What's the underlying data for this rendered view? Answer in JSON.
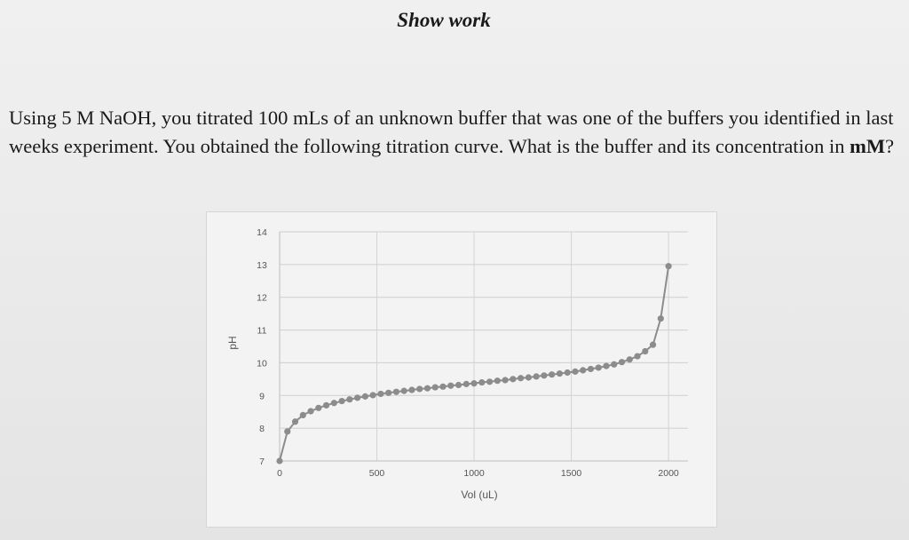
{
  "page": {
    "heading": "Show work",
    "question_pre": "Using 5 M NaOH, you titrated 100 mLs of an unknown buffer that was one of the buffers you identified in last weeks experiment. You obtained the following titration curve. What is the buffer and its concentration in ",
    "question_bold": "mM",
    "question_post": "?"
  },
  "chart_data": {
    "type": "line",
    "xlabel": "Vol (uL)",
    "ylabel": "pH",
    "xlim": [
      0,
      2100
    ],
    "ylim": [
      7,
      14
    ],
    "x_ticks": [
      0,
      500,
      1000,
      1500,
      2000
    ],
    "y_ticks": [
      7,
      8,
      9,
      10,
      11,
      12,
      13,
      14
    ],
    "grid": true,
    "series": [
      {
        "color": "#8c8c8c",
        "points": [
          [
            0,
            7.0
          ],
          [
            40,
            7.9
          ],
          [
            80,
            8.2
          ],
          [
            120,
            8.4
          ],
          [
            160,
            8.52
          ],
          [
            200,
            8.62
          ],
          [
            240,
            8.7
          ],
          [
            280,
            8.77
          ],
          [
            320,
            8.83
          ],
          [
            360,
            8.88
          ],
          [
            400,
            8.93
          ],
          [
            440,
            8.97
          ],
          [
            480,
            9.01
          ],
          [
            520,
            9.05
          ],
          [
            560,
            9.08
          ],
          [
            600,
            9.11
          ],
          [
            640,
            9.14
          ],
          [
            680,
            9.17
          ],
          [
            720,
            9.2
          ],
          [
            760,
            9.22
          ],
          [
            800,
            9.25
          ],
          [
            840,
            9.27
          ],
          [
            880,
            9.3
          ],
          [
            920,
            9.32
          ],
          [
            960,
            9.35
          ],
          [
            1000,
            9.37
          ],
          [
            1040,
            9.4
          ],
          [
            1080,
            9.42
          ],
          [
            1120,
            9.45
          ],
          [
            1160,
            9.47
          ],
          [
            1200,
            9.5
          ],
          [
            1240,
            9.53
          ],
          [
            1280,
            9.55
          ],
          [
            1320,
            9.58
          ],
          [
            1360,
            9.61
          ],
          [
            1400,
            9.64
          ],
          [
            1440,
            9.67
          ],
          [
            1480,
            9.7
          ],
          [
            1520,
            9.73
          ],
          [
            1560,
            9.77
          ],
          [
            1600,
            9.81
          ],
          [
            1640,
            9.85
          ],
          [
            1680,
            9.9
          ],
          [
            1720,
            9.95
          ],
          [
            1760,
            10.02
          ],
          [
            1800,
            10.1
          ],
          [
            1840,
            10.2
          ],
          [
            1880,
            10.35
          ],
          [
            1920,
            10.55
          ],
          [
            1960,
            11.35
          ],
          [
            2000,
            12.95
          ]
        ]
      }
    ]
  }
}
